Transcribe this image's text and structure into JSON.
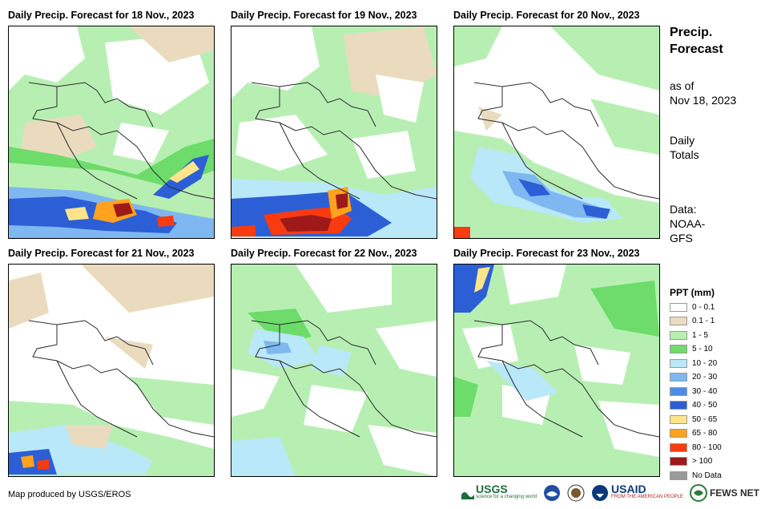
{
  "panels": [
    {
      "title": "Daily Precip. Forecast for 18 Nov., 2023"
    },
    {
      "title": "Daily Precip. Forecast for 19 Nov., 2023"
    },
    {
      "title": "Daily Precip. Forecast for 20 Nov., 2023"
    },
    {
      "title": "Daily Precip. Forecast for 21 Nov., 2023"
    },
    {
      "title": "Daily Precip. Forecast for 22 Nov., 2023"
    },
    {
      "title": "Daily Precip. Forecast for 23 Nov., 2023"
    }
  ],
  "sidebar": {
    "title_line1": "Precip.",
    "title_line2": "Forecast",
    "asof_line1": "as of",
    "asof_line2": "Nov 18, 2023",
    "totals_line1": "Daily",
    "totals_line2": "Totals",
    "data_line1": "Data:",
    "data_line2": "NOAA-",
    "data_line3": "GFS"
  },
  "legend": {
    "title": "PPT (mm)",
    "items": [
      {
        "label": "0 - 0.1",
        "color": "#ffffff"
      },
      {
        "label": "0.1 - 1",
        "color": "#eadbbf"
      },
      {
        "label": "1 - 5",
        "color": "#b7efb3"
      },
      {
        "label": "5 - 10",
        "color": "#6ddc6a"
      },
      {
        "label": "10 - 20",
        "color": "#b9e8f8"
      },
      {
        "label": "20 - 30",
        "color": "#7fb8f0"
      },
      {
        "label": "30 - 40",
        "color": "#4d8be6"
      },
      {
        "label": "40 - 50",
        "color": "#2c5fd6"
      },
      {
        "label": "50 - 65",
        "color": "#ffe58a"
      },
      {
        "label": "65 - 80",
        "color": "#ffa21e"
      },
      {
        "label": "80 - 100",
        "color": "#f83b10"
      },
      {
        "label": "> 100",
        "color": "#9e1a1a"
      },
      {
        "label": "No Data",
        "color": "#9a9a9a"
      }
    ]
  },
  "footer": {
    "credit": "Map produced by USGS/EROS",
    "logos": {
      "usgs": "USGS",
      "usgs_tagline": "science for a changing world",
      "usaid": "USAID",
      "usaid_tagline": "FROM THE AMERICAN PEOPLE",
      "fewsnet": "FEWS NET"
    }
  }
}
